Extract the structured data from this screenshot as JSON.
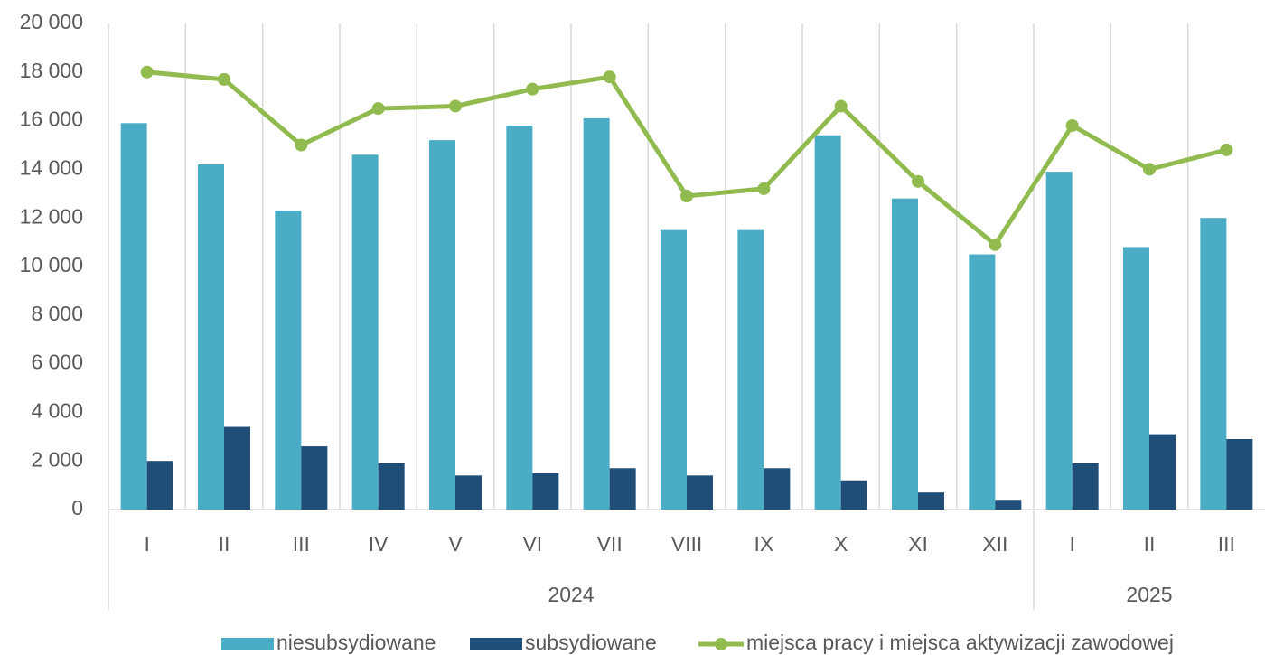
{
  "chart_data": {
    "type": "bar-line",
    "categories": [
      "I",
      "II",
      "III",
      "IV",
      "V",
      "VI",
      "VII",
      "VIII",
      "IX",
      "X",
      "XI",
      "XII",
      "I",
      "II",
      "III"
    ],
    "category_groups": [
      {
        "label": "2024",
        "span": 12
      },
      {
        "label": "2025",
        "span": 3
      }
    ],
    "series": [
      {
        "name": "niesubsydiowane",
        "type": "bar",
        "color": "#4bacc6",
        "values": [
          15900,
          14200,
          12300,
          14600,
          15200,
          15800,
          16100,
          11500,
          11500,
          15400,
          12800,
          10500,
          13900,
          10800,
          12000
        ]
      },
      {
        "name": "subsydiowane",
        "type": "bar",
        "color": "#1f4e79",
        "values": [
          2000,
          3400,
          2600,
          1900,
          1400,
          1500,
          1700,
          1400,
          1700,
          1200,
          700,
          400,
          1900,
          3100,
          2900
        ]
      },
      {
        "name": "miejsca pracy i miejsca aktywizacji zawodowej",
        "type": "line",
        "color": "#92bb4f",
        "values": [
          18000,
          17700,
          15000,
          16500,
          16600,
          17300,
          17800,
          12900,
          13200,
          16600,
          13500,
          10900,
          15800,
          14000,
          14800
        ]
      }
    ],
    "ylim": [
      0,
      20000
    ],
    "yticks": [
      0,
      {
        "value": 2000,
        "label": "2 000"
      },
      {
        "value": 4000,
        "label": "4 000"
      },
      {
        "value": 6000,
        "label": "6 000"
      },
      {
        "value": 8000,
        "label": "8 000"
      },
      {
        "value": 10000,
        "label": "10 000"
      },
      {
        "value": 12000,
        "label": "12 000"
      },
      {
        "value": 14000,
        "label": "14 000"
      },
      {
        "value": 16000,
        "label": "16 000"
      },
      {
        "value": 18000,
        "label": "18 000"
      },
      {
        "value": 20000,
        "label": "20 000"
      }
    ],
    "legend": "bottom"
  }
}
